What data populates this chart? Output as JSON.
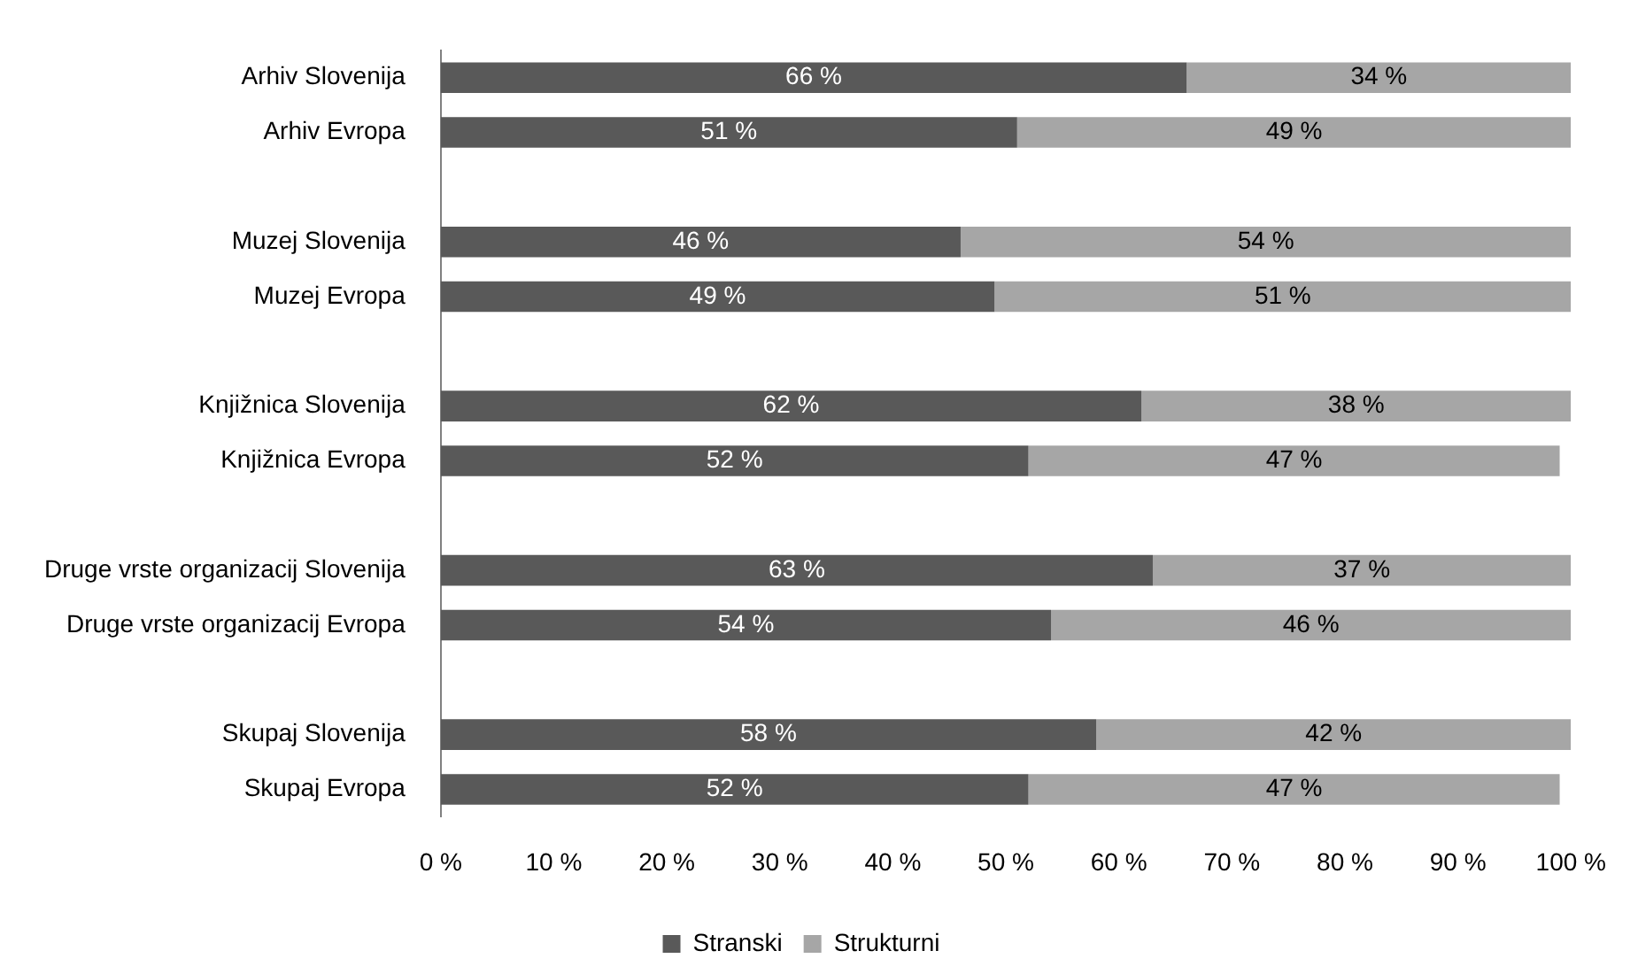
{
  "chart_data": {
    "type": "bar",
    "orientation": "horizontal",
    "stacked": true,
    "categories": [
      "Arhiv Slovenija",
      "Arhiv Evropa",
      null,
      "Muzej Slovenija",
      "Muzej Evropa",
      null,
      "Knjižnica Slovenija",
      "Knjižnica Evropa",
      null,
      "Druge vrste organizacij Slovenija",
      "Druge vrste organizacij Evropa",
      null,
      "Skupaj Slovenija",
      "Skupaj Evropa"
    ],
    "series": [
      {
        "name": "Stranski",
        "color": "#595959",
        "values": [
          66,
          51,
          null,
          46,
          49,
          null,
          62,
          52,
          null,
          63,
          54,
          null,
          58,
          52
        ],
        "value_labels": [
          "66 %",
          "51 %",
          null,
          "46 %",
          "49 %",
          null,
          "62 %",
          "52 %",
          null,
          "63 %",
          "54 %",
          null,
          "58 %",
          "52 %"
        ]
      },
      {
        "name": "Strukturni",
        "color": "#a6a6a6",
        "values": [
          34,
          49,
          null,
          54,
          51,
          null,
          38,
          47,
          null,
          37,
          46,
          null,
          42,
          47
        ],
        "value_labels": [
          "34 %",
          "49 %",
          null,
          "54 %",
          "51 %",
          null,
          "38 %",
          "47 %",
          null,
          "37 %",
          "46 %",
          null,
          "42 %",
          "47 %"
        ]
      }
    ],
    "xlim": [
      0,
      100
    ],
    "xticks": [
      {
        "value": 0,
        "label": "0 %"
      },
      {
        "value": 10,
        "label": "10 %"
      },
      {
        "value": 20,
        "label": "20 %"
      },
      {
        "value": 30,
        "label": "30 %"
      },
      {
        "value": 40,
        "label": "40 %"
      },
      {
        "value": 50,
        "label": "50 %"
      },
      {
        "value": 60,
        "label": "60 %"
      },
      {
        "value": 70,
        "label": "70 %"
      },
      {
        "value": 80,
        "label": "80 %"
      },
      {
        "value": 90,
        "label": "90 %"
      },
      {
        "value": 100,
        "label": "100 %"
      }
    ],
    "grid": false,
    "legend": "bottom"
  }
}
